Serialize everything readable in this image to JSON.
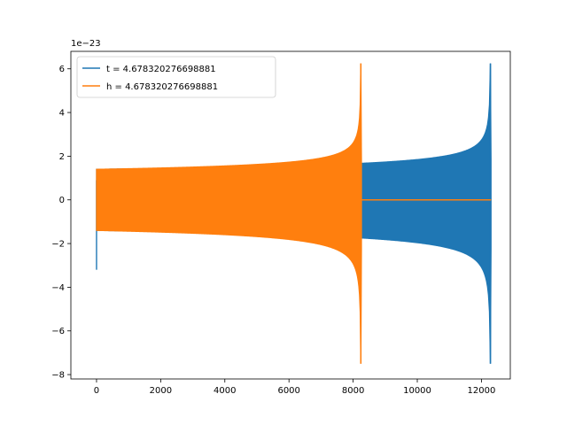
{
  "chart_data": {
    "type": "line",
    "title": "",
    "xlabel": "",
    "ylabel": "",
    "y_scale_label": "1e−23",
    "xlim": [
      -800,
      12900
    ],
    "ylim": [
      -8.2,
      6.8
    ],
    "x_ticks": [
      0,
      2000,
      4000,
      6000,
      8000,
      10000,
      12000
    ],
    "x_tick_labels": [
      "0",
      "2000",
      "4000",
      "6000",
      "8000",
      "10000",
      "12000"
    ],
    "y_ticks": [
      -8,
      -6,
      -4,
      -2,
      0,
      2,
      4,
      6
    ],
    "y_tick_labels": [
      "−8",
      "−6",
      "−4",
      "−2",
      "0",
      "2",
      "4",
      "6"
    ],
    "grid": false,
    "legend_position": "top-left",
    "series": [
      {
        "name": "t = 4.678320276698881",
        "color": "#1f77b4",
        "signal": "chirp",
        "x_start": 0,
        "x_peak": 12280,
        "x_end": 12300,
        "start_amplitude": 1.4,
        "peak_max": 6.25,
        "peak_min": -7.5,
        "initial_spike": [
          0.9,
          -3.2
        ]
      },
      {
        "name": "h = 4.678320276698881",
        "color": "#ff7f0e",
        "signal": "chirp",
        "x_start": 0,
        "x_peak": 8240,
        "x_end": 8260,
        "start_amplitude": 1.4,
        "peak_max": 6.25,
        "peak_min": -7.5,
        "tail_value": 0,
        "tail_end": 12300
      }
    ]
  }
}
